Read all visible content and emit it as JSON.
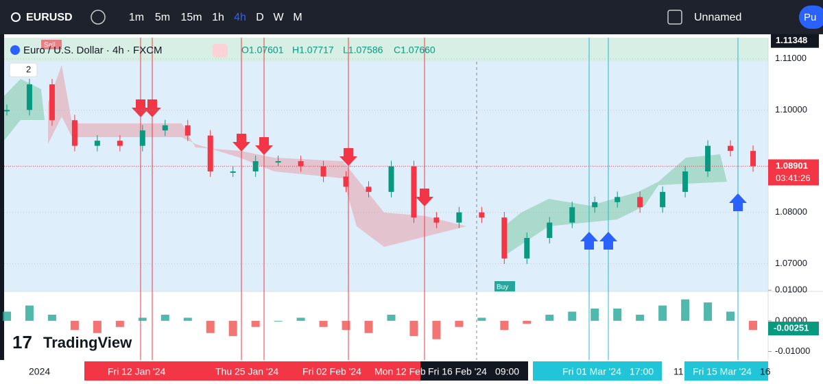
{
  "toolbar": {
    "symbol": "EURUSD",
    "intervals": [
      "1m",
      "5m",
      "15m",
      "1h",
      "4h",
      "D",
      "W",
      "M"
    ],
    "layout": "Unnamed",
    "publish": "Pu"
  },
  "legend": {
    "title": "Euro / U.S. Dollar · 4h · FXCM",
    "open": "O1.07601",
    "high": "H1.07717",
    "low": "L1.07586",
    "close": "C1.07660",
    "collapse": "2"
  },
  "signals": {
    "sell": "Sell",
    "buy": "Buy"
  },
  "logo": "TradingView",
  "price_chart": {
    "type": "candlestick",
    "ylim": [
      1.11411,
      1.06456
    ],
    "yticks": [
      {
        "value": 1.11,
        "label": "1.11000"
      },
      {
        "value": 1.1,
        "label": "1.10000"
      },
      {
        "value": 1.08,
        "label": "1.08000"
      },
      {
        "value": 1.07,
        "label": "1.07000"
      }
    ],
    "high_label": {
      "value": 1.11348,
      "label": "1.11348"
    },
    "last_label": {
      "value": 1.08901,
      "label": "1.08901"
    },
    "countdown": "03:41:26",
    "closes": [
      1.1,
      1.105,
      1.098,
      1.093,
      1.094,
      1.093,
      1.096,
      1.097,
      1.095,
      1.088,
      1.088,
      1.09,
      1.09,
      1.089,
      1.087,
      1.085,
      1.084,
      1.089,
      1.079,
      1.078,
      1.08,
      1.079,
      1.071,
      1.075,
      1.078,
      1.081,
      1.082,
      1.083,
      1.081,
      1.084,
      1.088,
      1.093,
      1.092,
      1.089
    ]
  },
  "oscillator": {
    "type": "bar",
    "ylim": [
      0.0096,
      -0.0128
    ],
    "yticks": [
      {
        "value": 0.01,
        "label": "0.01000"
      },
      {
        "value": 0,
        "label": "0.00000"
      },
      {
        "value": -0.01,
        "label": "-0.01000"
      }
    ],
    "last_label": {
      "value": -0.00251,
      "label": "-0.00251"
    },
    "values": [
      0.003,
      0.005,
      0.002,
      -0.003,
      -0.004,
      -0.002,
      0.001,
      0.002,
      0.001,
      -0.004,
      -0.005,
      -0.002,
      0.0,
      0.001,
      -0.002,
      -0.003,
      -0.004,
      0.002,
      -0.005,
      -0.006,
      -0.002,
      0.001,
      -0.003,
      -0.001,
      0.002,
      0.003,
      0.004,
      0.004,
      0.002,
      0.005,
      0.007,
      0.006,
      0.003,
      -0.003
    ]
  },
  "time_axis": [
    "2024",
    "Fri 12 Jan '24",
    "Thu 25 Jan '24",
    "Fri 02 Feb '24",
    "Mon 12 Feb",
    "Fri 16 Feb '24",
    "09:00",
    "Fri 01 Mar '24",
    "17:00",
    "11",
    "Fri 15 Mar '24",
    "16"
  ]
}
